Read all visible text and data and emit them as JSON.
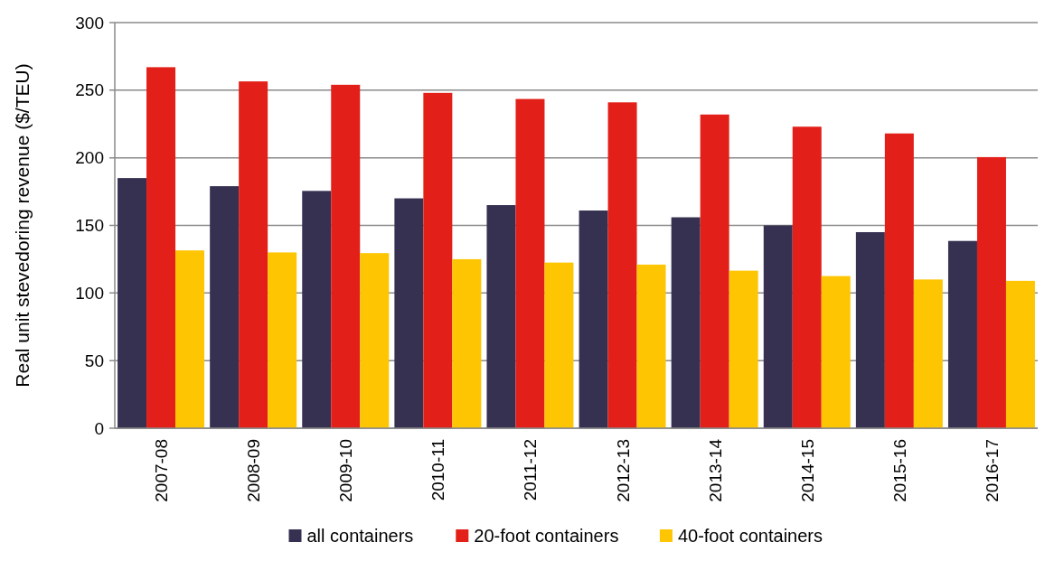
{
  "chart_data": {
    "type": "bar",
    "ylabel": "Real unit stevedoring revenue ($/TEU)",
    "categories": [
      "2007-08",
      "2008-09",
      "2009-10",
      "2010-11",
      "2011-12",
      "2012-13",
      "2013-14",
      "2014-15",
      "2015-16",
      "2016-17"
    ],
    "series": [
      {
        "name": "all containers",
        "color": "#363051",
        "values": [
          185,
          179,
          175.5,
          170,
          165,
          161,
          156,
          150,
          145,
          138.5
        ]
      },
      {
        "name": "20-foot containers",
        "color": "#e21f18",
        "values": [
          267,
          256.5,
          254,
          248,
          243.5,
          241,
          232,
          223,
          218,
          200.5
        ]
      },
      {
        "name": "40-foot containers",
        "color": "#fec502",
        "values": [
          131.5,
          130,
          129.5,
          125,
          122.5,
          121,
          116.5,
          112.5,
          110,
          109
        ]
      }
    ],
    "ylim": [
      0,
      300
    ],
    "yticks": [
      0,
      50,
      100,
      150,
      200,
      250,
      300
    ],
    "grid": "y",
    "legend": "bottom"
  }
}
